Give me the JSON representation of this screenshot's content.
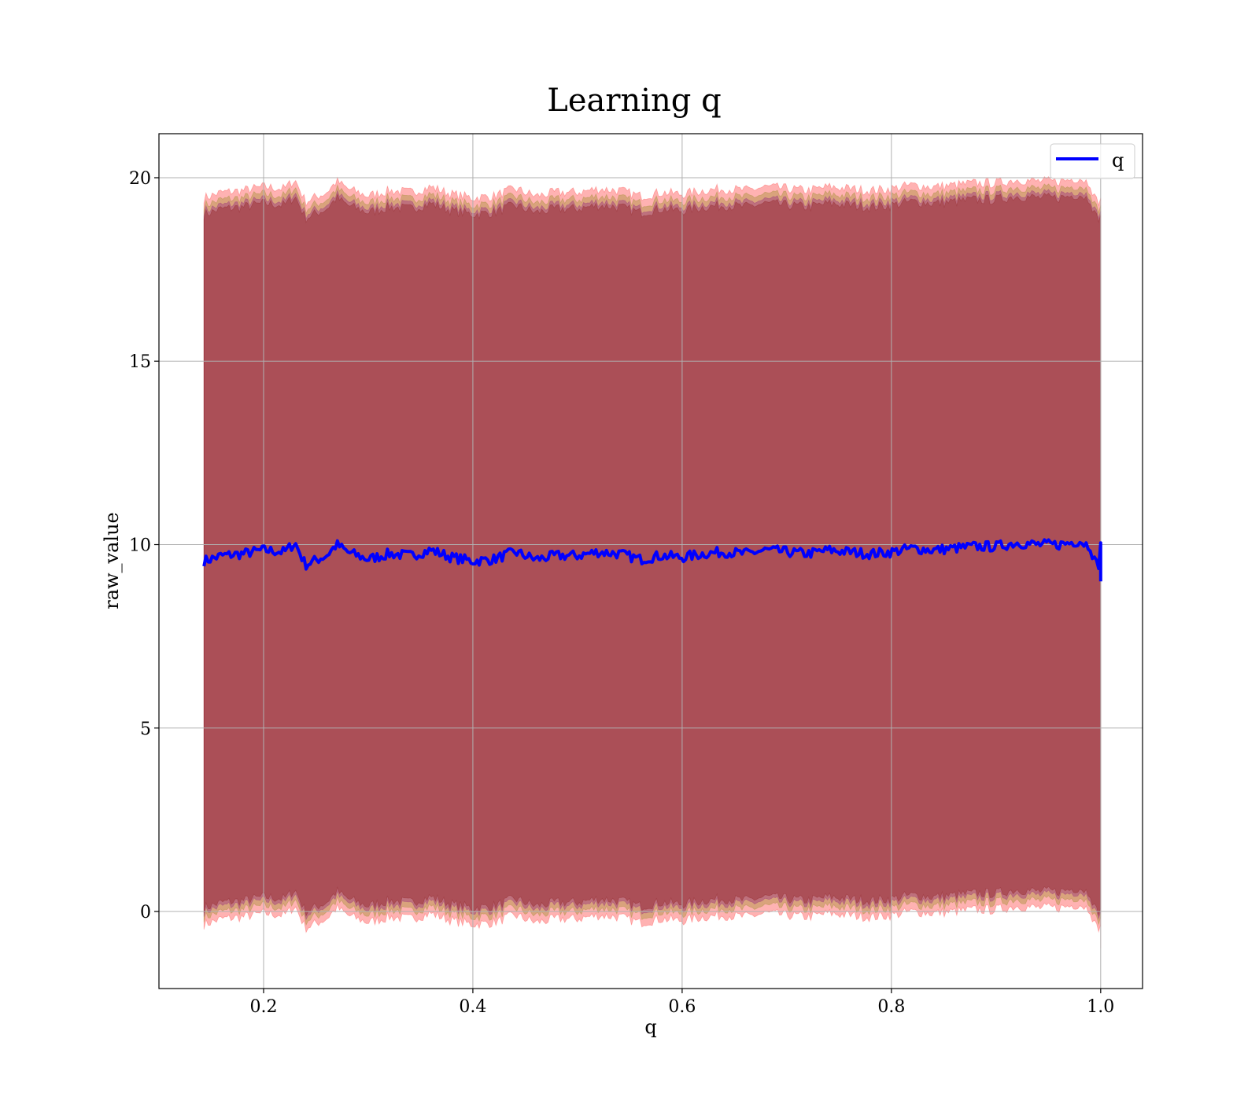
{
  "chart_data": {
    "type": "line",
    "title": "Learning q",
    "xlabel": "q",
    "ylabel": "raw_value",
    "xlim": [
      0.1,
      1.04
    ],
    "ylim": [
      -2.1,
      21.2
    ],
    "xticks": [
      0.2,
      0.4,
      0.6,
      0.8,
      1.0
    ],
    "xtick_labels": [
      "0.2",
      "0.4",
      "0.6",
      "0.8",
      "1.0"
    ],
    "yticks": [
      0,
      5,
      10,
      15,
      20
    ],
    "ytick_labels": [
      "0",
      "5",
      "10",
      "15",
      "20"
    ],
    "grid": true,
    "legend": {
      "position": "top-right",
      "entries": [
        "q"
      ]
    },
    "x_range": [
      0.143,
      1.0
    ],
    "series": [
      {
        "name": "q",
        "color": "#0000ff",
        "x": [
          0.143,
          0.16,
          0.18,
          0.2,
          0.22,
          0.23,
          0.24,
          0.26,
          0.27,
          0.28,
          0.3,
          0.32,
          0.34,
          0.36,
          0.38,
          0.4,
          0.42,
          0.44,
          0.46,
          0.48,
          0.5,
          0.52,
          0.54,
          0.56,
          0.58,
          0.6,
          0.62,
          0.64,
          0.66,
          0.68,
          0.7,
          0.72,
          0.74,
          0.76,
          0.78,
          0.8,
          0.82,
          0.84,
          0.86,
          0.88,
          0.9,
          0.92,
          0.94,
          0.96,
          0.98,
          0.99,
          1.0
        ],
        "y": [
          9.55,
          9.7,
          9.75,
          9.85,
          9.8,
          10.05,
          9.45,
          9.7,
          10.0,
          9.8,
          9.6,
          9.75,
          9.7,
          9.85,
          9.65,
          9.55,
          9.6,
          9.8,
          9.6,
          9.7,
          9.7,
          9.8,
          9.75,
          9.6,
          9.7,
          9.65,
          9.75,
          9.8,
          9.75,
          9.85,
          9.8,
          9.75,
          9.85,
          9.8,
          9.75,
          9.8,
          9.9,
          9.85,
          9.9,
          9.95,
          9.95,
          10.05,
          10.0,
          10.0,
          10.1,
          9.95,
          9.0
        ]
      }
    ],
    "bands": [
      {
        "color": "#ff0000",
        "opacity": 0.3,
        "lower_offset": -9.9,
        "upper_offset": 9.9,
        "end_lower": -1.0
      },
      {
        "color": "#808000",
        "opacity": 0.3,
        "lower_offset": -9.7,
        "upper_offset": 9.7
      },
      {
        "color": "#800080",
        "opacity": 0.3,
        "lower_offset": -9.55,
        "upper_offset": 9.55
      },
      {
        "color": "#800000",
        "opacity": 0.3,
        "lower_offset": -9.45,
        "upper_offset": 9.45
      }
    ]
  }
}
